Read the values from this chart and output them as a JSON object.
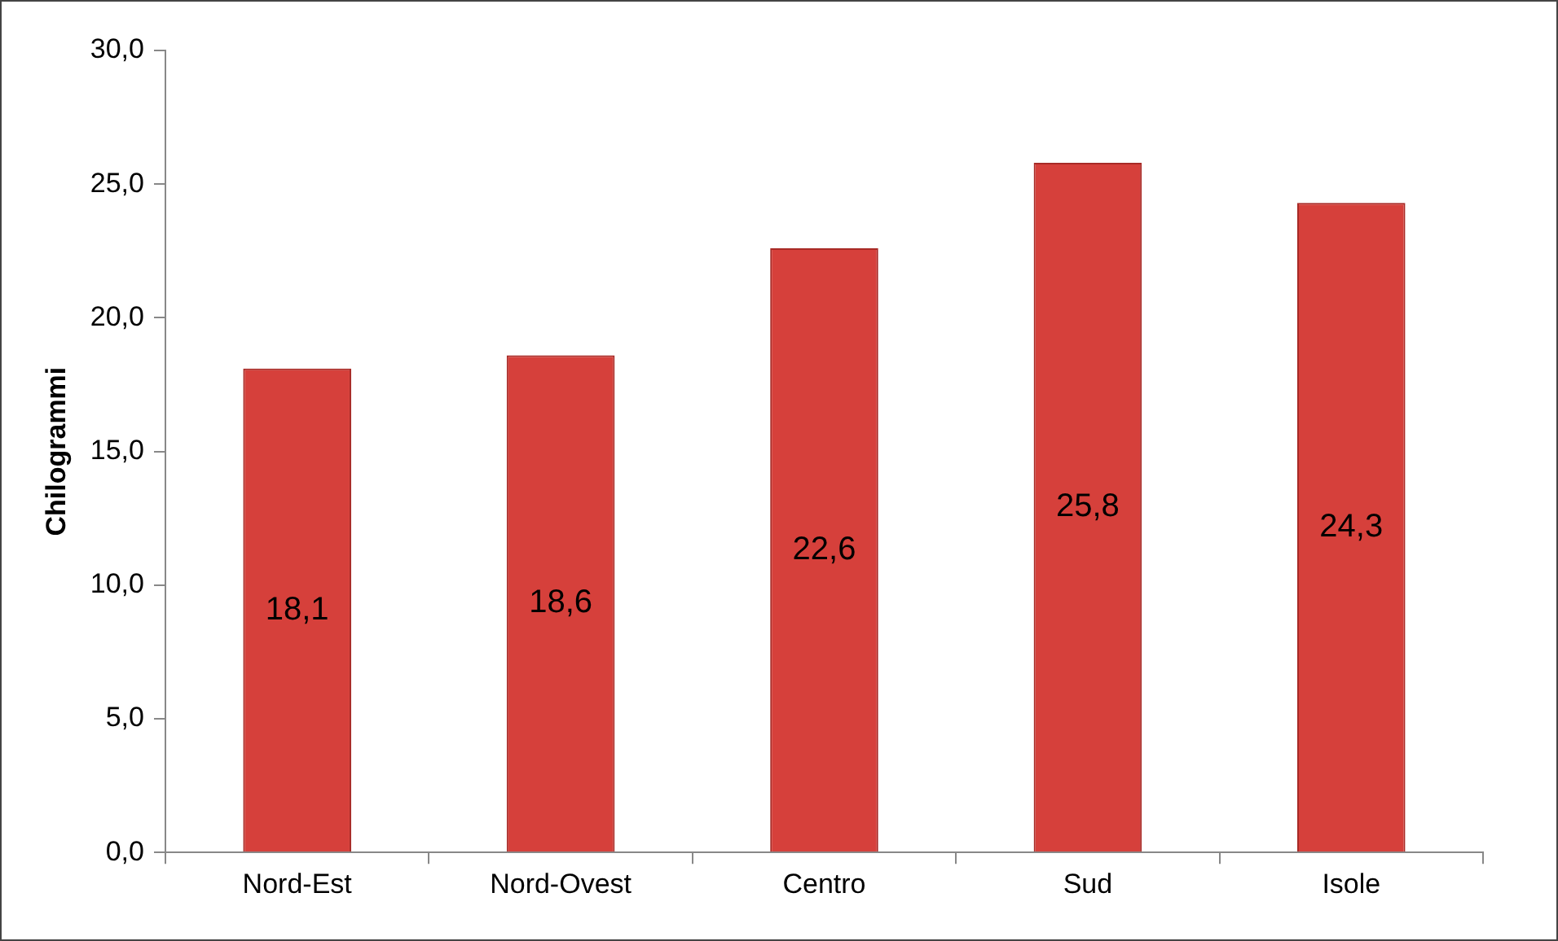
{
  "chart_data": {
    "type": "bar",
    "ylabel": "Chilogrammi",
    "categories": [
      "Nord-Est",
      "Nord-Ovest",
      "Centro",
      "Sud",
      "Isole"
    ],
    "values": [
      18.1,
      18.6,
      22.6,
      25.8,
      24.3
    ],
    "value_labels": [
      "18,1",
      "18,6",
      "22,6",
      "25,8",
      "24,3"
    ],
    "color": "#d6403b",
    "ylim": [
      0,
      30
    ],
    "yticks": [
      {
        "value": 0,
        "label": "0,0"
      },
      {
        "value": 5,
        "label": "5,0"
      },
      {
        "value": 10,
        "label": "10,0"
      },
      {
        "value": 15,
        "label": "15,0"
      },
      {
        "value": 20,
        "label": "20,0"
      },
      {
        "value": 25,
        "label": "25,0"
      },
      {
        "value": 30,
        "label": "30,0"
      }
    ],
    "legend": false
  }
}
